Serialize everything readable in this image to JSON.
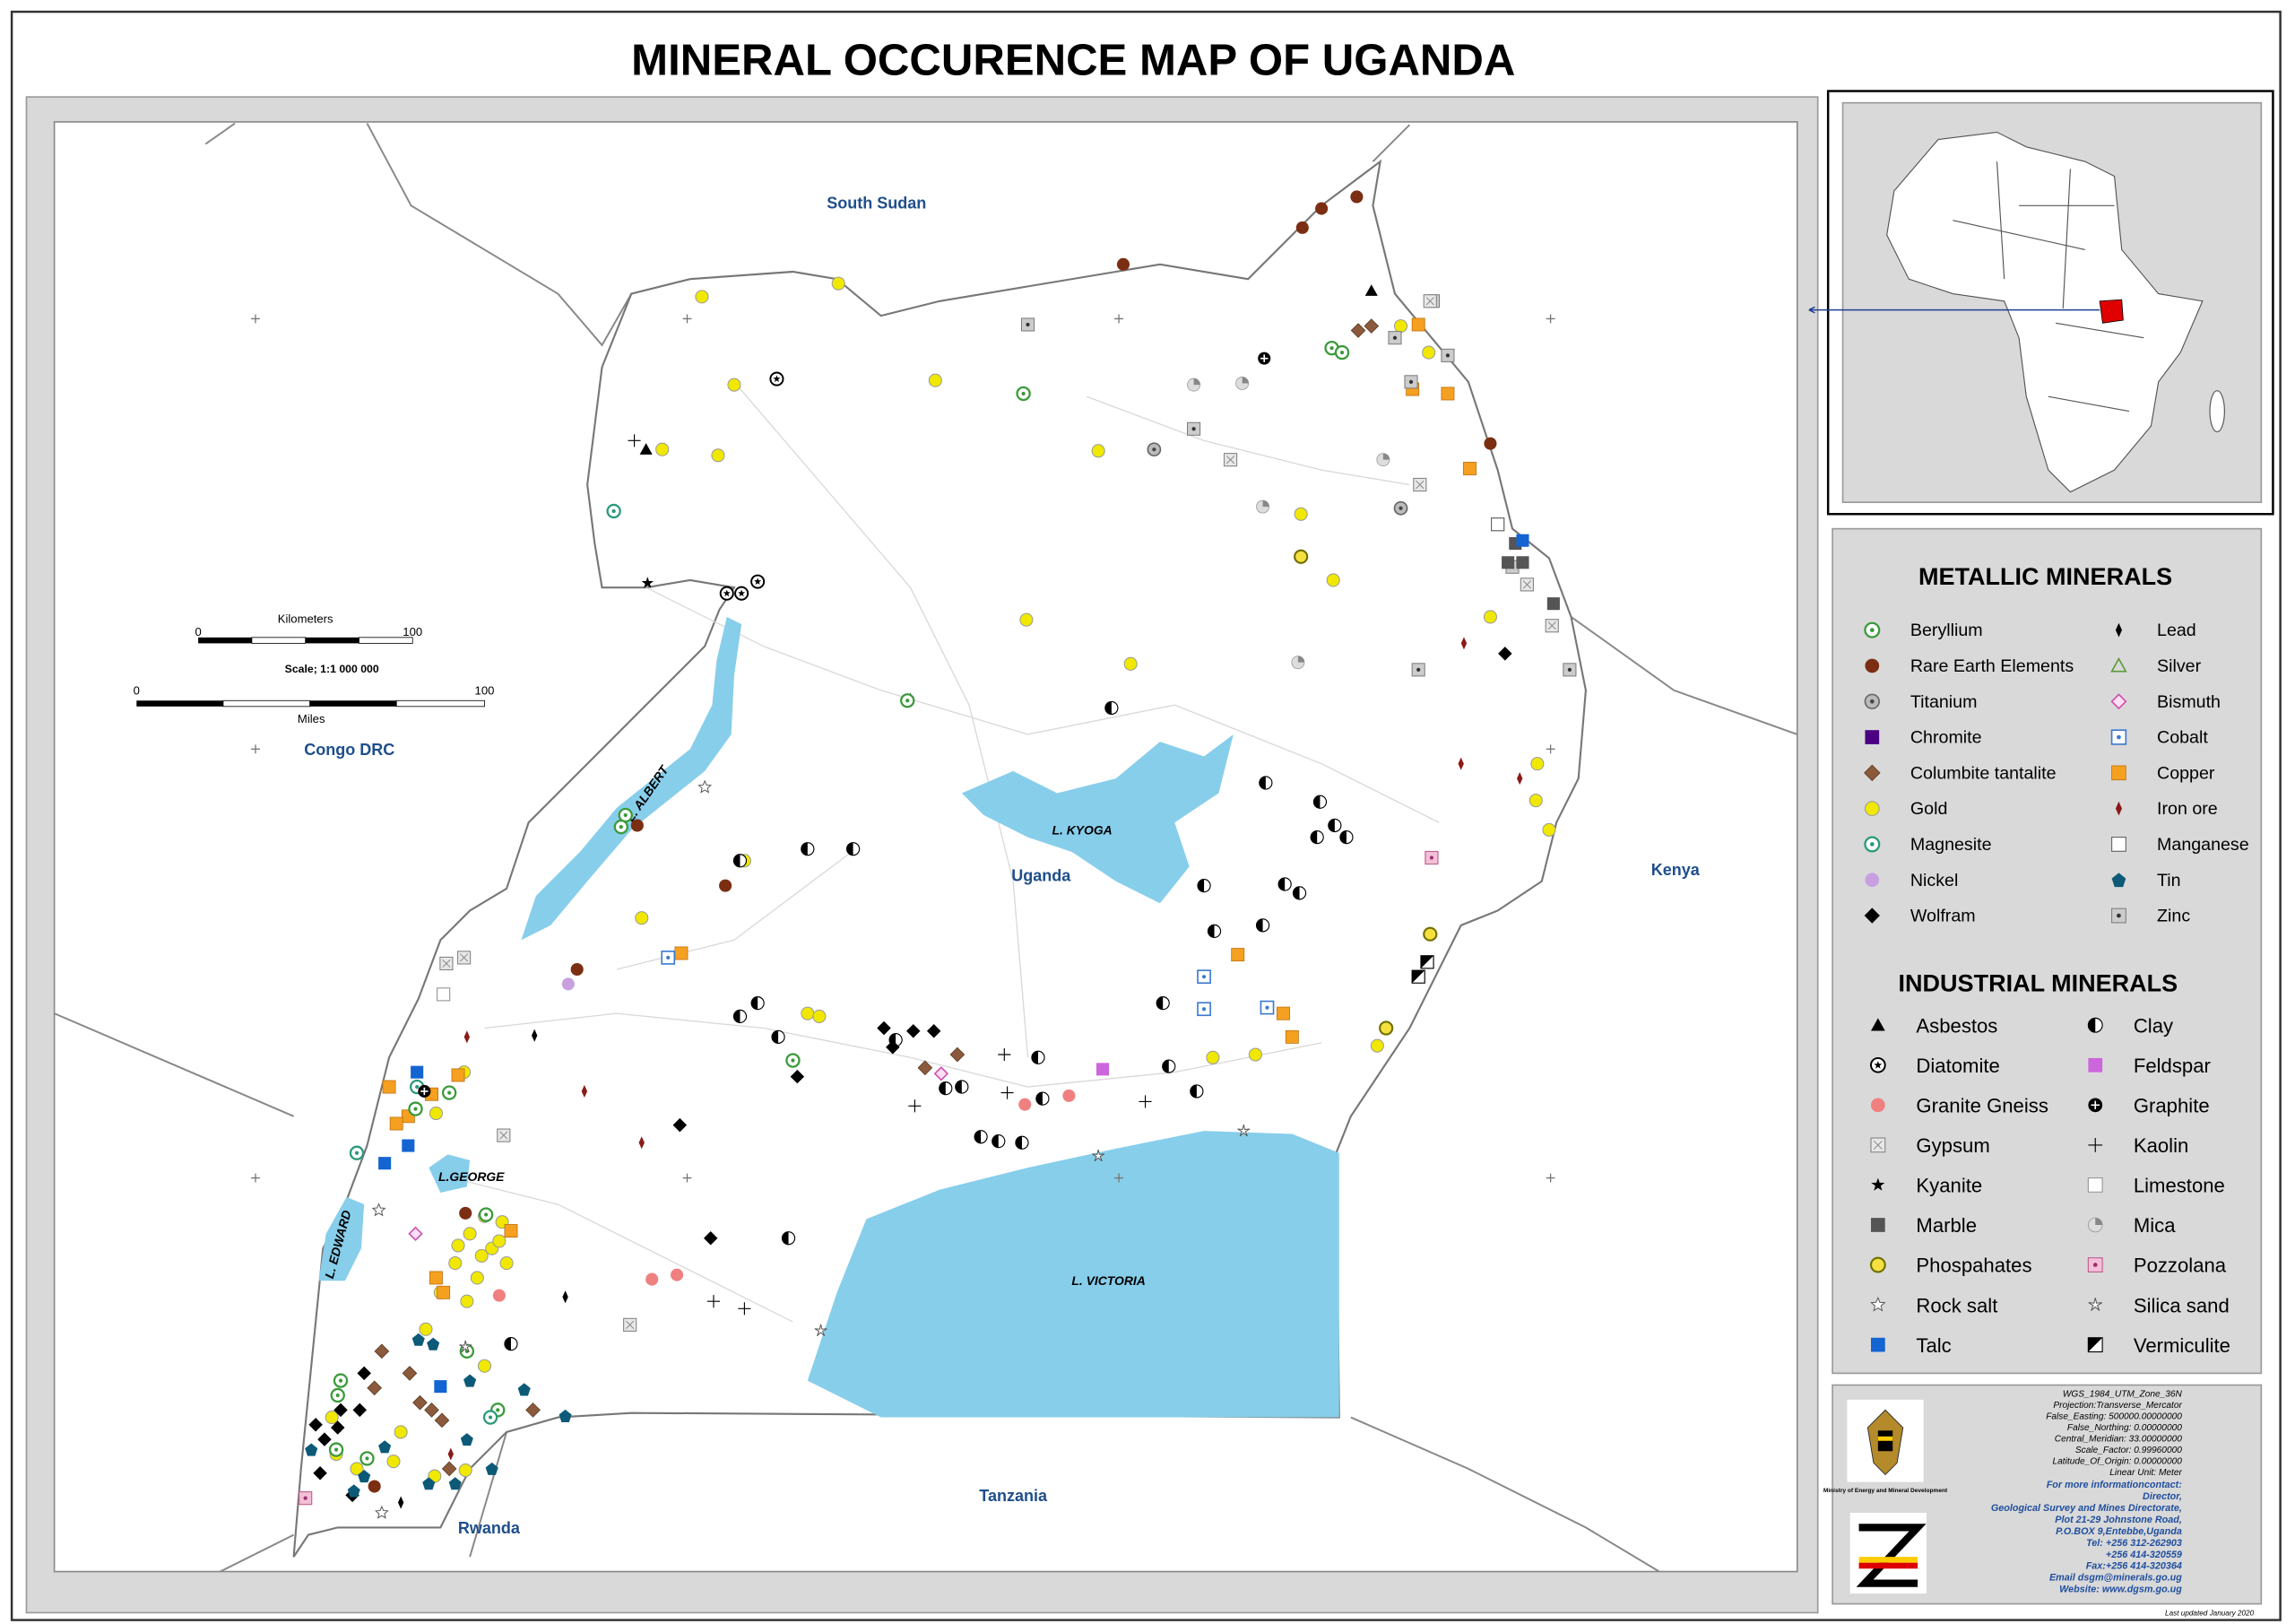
{
  "title": "MINERAL OCCURENCE MAP OF UGANDA",
  "map_labels": {
    "countries": [
      "South Sudan",
      "Congo DRC",
      "Kenya",
      "Tanzania",
      "Rwanda",
      "Uganda"
    ],
    "lakes": [
      "L. ALBERT",
      "L. KYOGA",
      "L. VICTORIA",
      "L.GEORGE",
      "L. EDWARD"
    ]
  },
  "scale_bar": {
    "km_label": "Kilometers",
    "km_ticks": [
      "0",
      "100"
    ],
    "scale": "Scale; 1:1 000 000",
    "mile_ticks": [
      "0",
      "100"
    ],
    "mile_label": "Miles"
  },
  "legend": {
    "metallic": {
      "heading": "METALLIC MINERALS",
      "items": [
        "Beryllium",
        "Lead",
        "Rare Earth Elements",
        "Silver",
        "Titanium",
        "Bismuth",
        "Chromite",
        "Cobalt",
        "Columbite tantalite",
        "Copper",
        "Gold",
        "Iron ore",
        "Magnesite",
        "Manganese",
        "Nickel",
        "Tin",
        "Wolfram",
        "Zinc"
      ]
    },
    "industrial": {
      "heading": "INDUSTRIAL MINERALS",
      "items": [
        "Asbestos",
        "Clay",
        "Diatomite",
        "Feldspar",
        "Granite Gneiss",
        "Graphite",
        "Gypsum",
        "Kaolin",
        "Kyanite",
        "Limestone",
        "Marble",
        "Mica",
        "Phospahates",
        "Pozzolana",
        "Rock salt",
        "Silica sand",
        "Talc",
        "Vermiculite"
      ]
    }
  },
  "info": {
    "projection": [
      "WGS_1984_UTM_Zone_36N",
      "Projection:Transverse_Mercator",
      "False_Easting: 500000.00000000",
      "False_Northing: 0.00000000",
      "Central_Meridian: 33.00000000",
      "Scale_Factor: 0.99960000",
      "Latitude_Of_Origin: 0.00000000",
      "Linear Unit: Meter"
    ],
    "ministry": "Ministry of Energy and Mineral Development",
    "contact": [
      "For more informationcontact:",
      "Director,",
      "Geological Survey and Mines Directorate,",
      "Plot 21-29 Johnstone Road,",
      "P.O.BOX 9,Entebbe,Uganda",
      "Tel: +256 312-262903",
      "+256 414-320559",
      "Fax:+256 414-320364",
      "Email dsgm@minerals.go.ug",
      "Website: www.dgsm.go.ug"
    ],
    "updated": "Last updated January 2020"
  }
}
